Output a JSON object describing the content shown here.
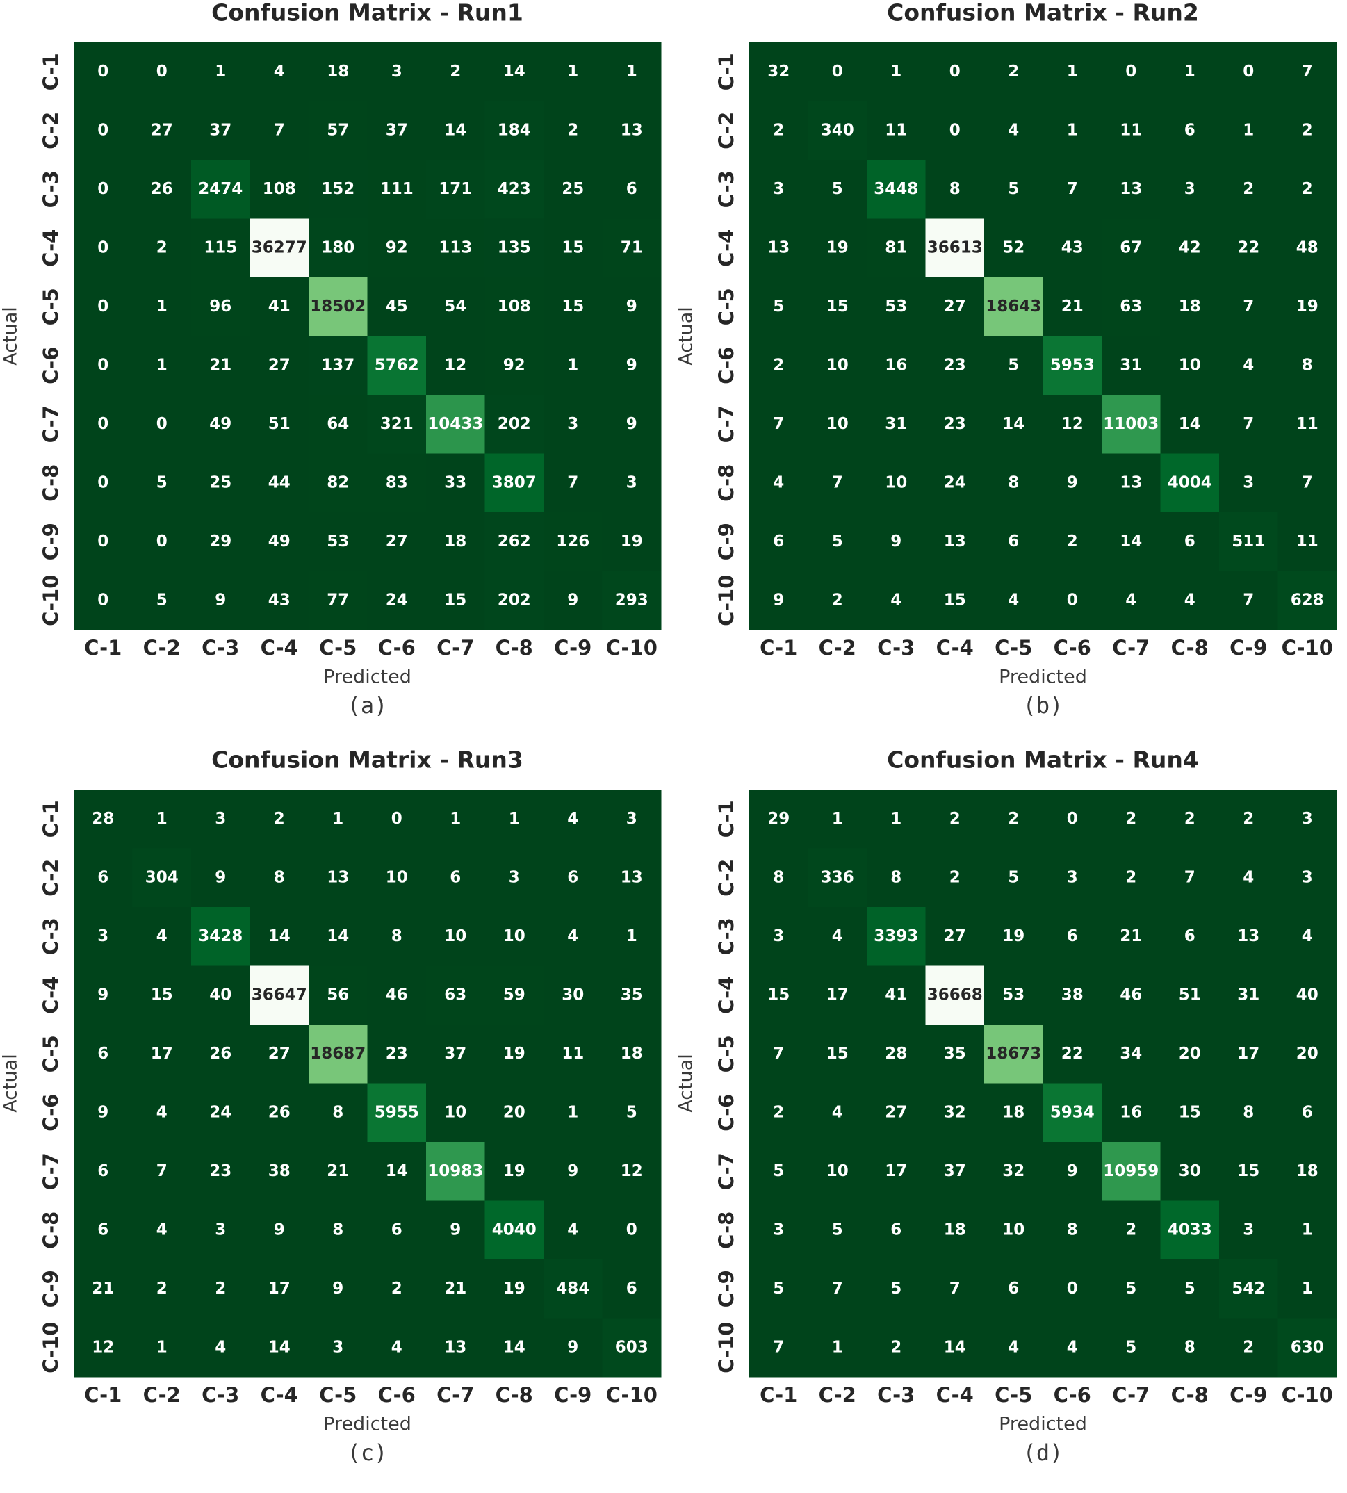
{
  "chart_data": [
    {
      "type": "heatmap",
      "title": "Confusion Matrix - Run1",
      "x_label": "Predicted",
      "y_label": "Actual",
      "caption": "(a)",
      "categories": [
        "C-1",
        "C-2",
        "C-3",
        "C-4",
        "C-5",
        "C-6",
        "C-7",
        "C-8",
        "C-9",
        "C-10"
      ],
      "colorscale": [
        "#00441b",
        "#006d2c",
        "#238b45",
        "#41ab5d",
        "#74c476",
        "#a1d99b",
        "#c7e9c0",
        "#e5f5e0",
        "#f7fcf5"
      ],
      "values": [
        [
          0,
          0,
          1,
          4,
          18,
          3,
          2,
          14,
          1,
          1
        ],
        [
          0,
          27,
          37,
          7,
          57,
          37,
          14,
          184,
          2,
          13
        ],
        [
          0,
          26,
          2474,
          108,
          152,
          111,
          171,
          423,
          25,
          6
        ],
        [
          0,
          2,
          115,
          36277,
          180,
          92,
          113,
          135,
          15,
          71
        ],
        [
          0,
          1,
          96,
          41,
          18502,
          45,
          54,
          108,
          15,
          9
        ],
        [
          0,
          1,
          21,
          27,
          137,
          5762,
          12,
          92,
          1,
          9
        ],
        [
          0,
          0,
          49,
          51,
          64,
          321,
          10433,
          202,
          3,
          9
        ],
        [
          0,
          5,
          25,
          44,
          82,
          83,
          33,
          3807,
          7,
          3
        ],
        [
          0,
          0,
          29,
          49,
          53,
          27,
          18,
          262,
          126,
          19
        ],
        [
          0,
          5,
          9,
          43,
          77,
          24,
          15,
          202,
          9,
          293
        ]
      ]
    },
    {
      "type": "heatmap",
      "title": "Confusion Matrix - Run2",
      "x_label": "Predicted",
      "y_label": "Actual",
      "caption": "(b)",
      "categories": [
        "C-1",
        "C-2",
        "C-3",
        "C-4",
        "C-5",
        "C-6",
        "C-7",
        "C-8",
        "C-9",
        "C-10"
      ],
      "colorscale": [
        "#00441b",
        "#006d2c",
        "#238b45",
        "#41ab5d",
        "#74c476",
        "#a1d99b",
        "#c7e9c0",
        "#e5f5e0",
        "#f7fcf5"
      ],
      "values": [
        [
          32,
          0,
          1,
          0,
          2,
          1,
          0,
          1,
          0,
          7
        ],
        [
          2,
          340,
          11,
          0,
          4,
          1,
          11,
          6,
          1,
          2
        ],
        [
          3,
          5,
          3448,
          8,
          5,
          7,
          13,
          3,
          2,
          2
        ],
        [
          13,
          19,
          81,
          36613,
          52,
          43,
          67,
          42,
          22,
          48
        ],
        [
          5,
          15,
          53,
          27,
          18643,
          21,
          63,
          18,
          7,
          19
        ],
        [
          2,
          10,
          16,
          23,
          5,
          5953,
          31,
          10,
          4,
          8
        ],
        [
          7,
          10,
          31,
          23,
          14,
          12,
          11003,
          14,
          7,
          11
        ],
        [
          4,
          7,
          10,
          24,
          8,
          9,
          13,
          4004,
          3,
          7
        ],
        [
          6,
          5,
          9,
          13,
          6,
          2,
          14,
          6,
          511,
          11
        ],
        [
          9,
          2,
          4,
          15,
          4,
          0,
          4,
          4,
          7,
          628
        ]
      ]
    },
    {
      "type": "heatmap",
      "title": "Confusion Matrix - Run3",
      "x_label": "Predicted",
      "y_label": "Actual",
      "caption": "(c)",
      "categories": [
        "C-1",
        "C-2",
        "C-3",
        "C-4",
        "C-5",
        "C-6",
        "C-7",
        "C-8",
        "C-9",
        "C-10"
      ],
      "colorscale": [
        "#00441b",
        "#006d2c",
        "#238b45",
        "#41ab5d",
        "#74c476",
        "#a1d99b",
        "#c7e9c0",
        "#e5f5e0",
        "#f7fcf5"
      ],
      "values": [
        [
          28,
          1,
          3,
          2,
          1,
          0,
          1,
          1,
          4,
          3
        ],
        [
          6,
          304,
          9,
          8,
          13,
          10,
          6,
          3,
          6,
          13
        ],
        [
          3,
          4,
          3428,
          14,
          14,
          8,
          10,
          10,
          4,
          1
        ],
        [
          9,
          15,
          40,
          36647,
          56,
          46,
          63,
          59,
          30,
          35
        ],
        [
          6,
          17,
          26,
          27,
          18687,
          23,
          37,
          19,
          11,
          18
        ],
        [
          9,
          4,
          24,
          26,
          8,
          5955,
          10,
          20,
          1,
          5
        ],
        [
          6,
          7,
          23,
          38,
          21,
          14,
          10983,
          19,
          9,
          12
        ],
        [
          6,
          4,
          3,
          9,
          8,
          6,
          9,
          4040,
          4,
          0
        ],
        [
          21,
          2,
          2,
          17,
          9,
          2,
          21,
          19,
          484,
          6
        ],
        [
          12,
          1,
          4,
          14,
          3,
          4,
          13,
          14,
          9,
          603
        ]
      ]
    },
    {
      "type": "heatmap",
      "title": "Confusion Matrix - Run4",
      "x_label": "Predicted",
      "y_label": "Actual",
      "caption": "(d)",
      "categories": [
        "C-1",
        "C-2",
        "C-3",
        "C-4",
        "C-5",
        "C-6",
        "C-7",
        "C-8",
        "C-9",
        "C-10"
      ],
      "colorscale": [
        "#00441b",
        "#006d2c",
        "#238b45",
        "#41ab5d",
        "#74c476",
        "#a1d99b",
        "#c7e9c0",
        "#e5f5e0",
        "#f7fcf5"
      ],
      "values": [
        [
          29,
          1,
          1,
          2,
          2,
          0,
          2,
          2,
          2,
          3
        ],
        [
          8,
          336,
          8,
          2,
          5,
          3,
          2,
          7,
          4,
          3
        ],
        [
          3,
          4,
          3393,
          27,
          19,
          6,
          21,
          6,
          13,
          4
        ],
        [
          15,
          17,
          41,
          36668,
          53,
          38,
          46,
          51,
          31,
          40
        ],
        [
          7,
          15,
          28,
          35,
          18673,
          22,
          34,
          20,
          17,
          20
        ],
        [
          2,
          4,
          27,
          32,
          18,
          5934,
          16,
          15,
          8,
          6
        ],
        [
          5,
          10,
          17,
          37,
          32,
          9,
          10959,
          30,
          15,
          18
        ],
        [
          3,
          5,
          6,
          18,
          10,
          8,
          2,
          4033,
          3,
          1
        ],
        [
          5,
          7,
          5,
          7,
          6,
          0,
          5,
          5,
          542,
          1
        ],
        [
          7,
          1,
          2,
          14,
          4,
          4,
          5,
          8,
          2,
          630
        ]
      ]
    }
  ]
}
